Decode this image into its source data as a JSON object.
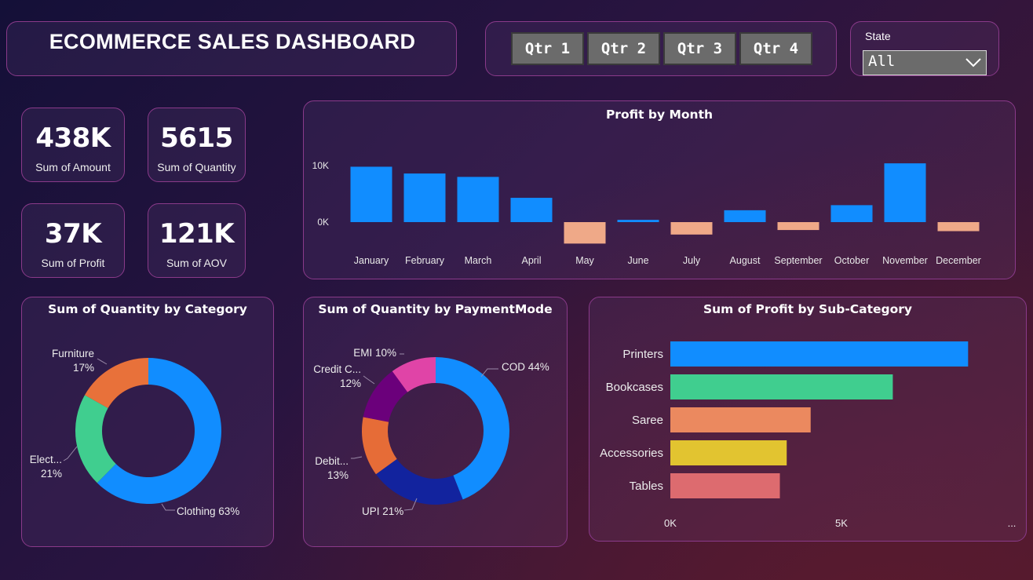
{
  "header": {
    "title": "ECOMMERCE SALES DASHBOARD"
  },
  "quarter_slicer": {
    "buttons": [
      "Qtr 1",
      "Qtr 2",
      "Qtr 3",
      "Qtr 4"
    ]
  },
  "state_filter": {
    "label": "State",
    "value": "All"
  },
  "kpis": [
    {
      "value": "438K",
      "label": "Sum of Amount"
    },
    {
      "value": "5615",
      "label": "Sum of Quantity"
    },
    {
      "value": "37K",
      "label": "Sum of Profit"
    },
    {
      "value": "121K",
      "label": "Sum of AOV"
    }
  ],
  "colors": {
    "positive": "#118DFF",
    "negative": "#EFA988",
    "donut_category": [
      "#118DFF",
      "#40CE8F",
      "#E8713A"
    ],
    "donut_payment": [
      "#118DFF",
      "#12239E",
      "#E66C37",
      "#6B007B",
      "#E044A7"
    ],
    "bars_subcategory": [
      "#118DFF",
      "#40CE8F",
      "#EB895F",
      "#E2C430",
      "#DD6B6F"
    ]
  },
  "chart_data": [
    {
      "id": "profit_by_month",
      "type": "bar",
      "title": "Profit by Month",
      "categories": [
        "January",
        "February",
        "March",
        "April",
        "May",
        "June",
        "July",
        "August",
        "September",
        "October",
        "November",
        "December"
      ],
      "values": [
        9800,
        8600,
        8000,
        4300,
        -3800,
        400,
        -2200,
        2100,
        -1400,
        3000,
        10400,
        -1600
      ],
      "ylim": [
        -6000,
        12000
      ],
      "yticks": [
        {
          "v": 10000,
          "label": "10K"
        },
        {
          "v": 0,
          "label": "0K"
        }
      ]
    },
    {
      "id": "quantity_by_category",
      "type": "pie",
      "title": "Sum of Quantity by Category",
      "labels": [
        "Clothing",
        "Electronics",
        "Furniture"
      ],
      "values": [
        63,
        21,
        17
      ],
      "data_labels": [
        {
          "name": "Clothing",
          "pct": "63%"
        },
        {
          "name": "Elect...",
          "pct": "21%"
        },
        {
          "name": "Furniture",
          "pct": "17%"
        }
      ]
    },
    {
      "id": "quantity_by_paymentmode",
      "type": "pie",
      "title": "Sum of Quantity by PaymentMode",
      "labels": [
        "COD",
        "UPI",
        "Debit Card",
        "Credit Card",
        "EMI"
      ],
      "values": [
        44,
        21,
        13,
        12,
        10
      ],
      "data_labels": [
        {
          "name": "COD",
          "pct": "44%"
        },
        {
          "name": "UPI",
          "pct": "21%"
        },
        {
          "name": "Debit...",
          "pct": "13%"
        },
        {
          "name": "Credit C...",
          "pct": "12%"
        },
        {
          "name": "EMI",
          "pct": "10%"
        }
      ]
    },
    {
      "id": "profit_by_subcategory",
      "type": "bar",
      "orientation": "horizontal",
      "title": "Sum of Profit by Sub-Category",
      "categories": [
        "Printers",
        "Bookcases",
        "Saree",
        "Accessories",
        "Tables"
      ],
      "values": [
        8700,
        6500,
        4100,
        3400,
        3200
      ],
      "xlim": [
        0,
        10500
      ],
      "xticks": [
        {
          "v": 0,
          "label": "0K"
        },
        {
          "v": 5000,
          "label": "5K"
        }
      ],
      "axis_ellipsis": "..."
    }
  ]
}
